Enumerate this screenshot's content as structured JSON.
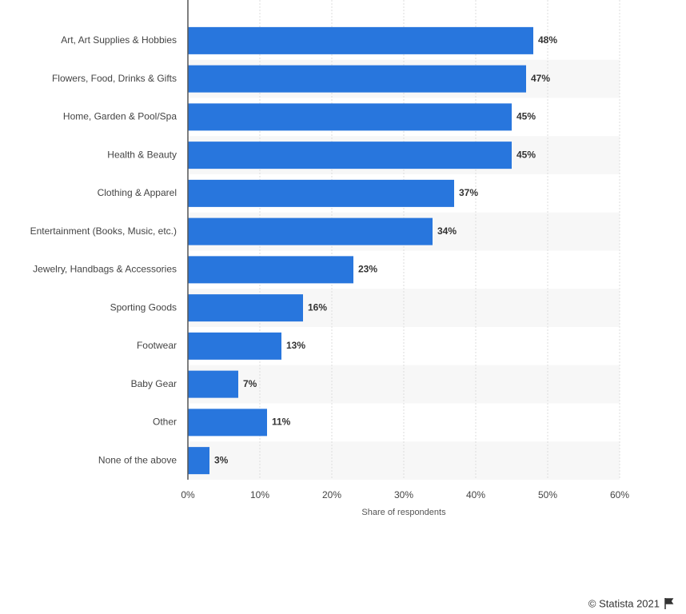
{
  "chart_data": {
    "type": "bar",
    "orientation": "horizontal",
    "x_label": "Share of respondents",
    "categories": [
      "Art, Art Supplies & Hobbies",
      "Flowers, Food, Drinks & Gifts",
      "Home, Garden & Pool/Spa",
      "Health & Beauty",
      "Clothing & Apparel",
      "Entertainment (Books, Music, etc.)",
      "Jewelry, Handbags & Accessories",
      "Sporting Goods",
      "Footwear",
      "Baby Gear",
      "Other",
      "None of the above"
    ],
    "values": [
      48,
      47,
      45,
      45,
      37,
      34,
      23,
      16,
      13,
      7,
      11,
      3
    ],
    "value_labels": [
      "48%",
      "47%",
      "45%",
      "45%",
      "37%",
      "34%",
      "23%",
      "16%",
      "13%",
      "7%",
      "11%",
      "3%"
    ],
    "color": "#2876dd",
    "xlim": [
      0,
      60
    ],
    "xticks": [
      {
        "value": 0,
        "label": "0%"
      },
      {
        "value": 10,
        "label": "10%"
      },
      {
        "value": 20,
        "label": "20%"
      },
      {
        "value": 30,
        "label": "30%"
      },
      {
        "value": 40,
        "label": "40%"
      },
      {
        "value": 50,
        "label": "50%"
      },
      {
        "value": 60,
        "label": "60%"
      }
    ],
    "grid": true,
    "source": "© Statista 2021"
  }
}
